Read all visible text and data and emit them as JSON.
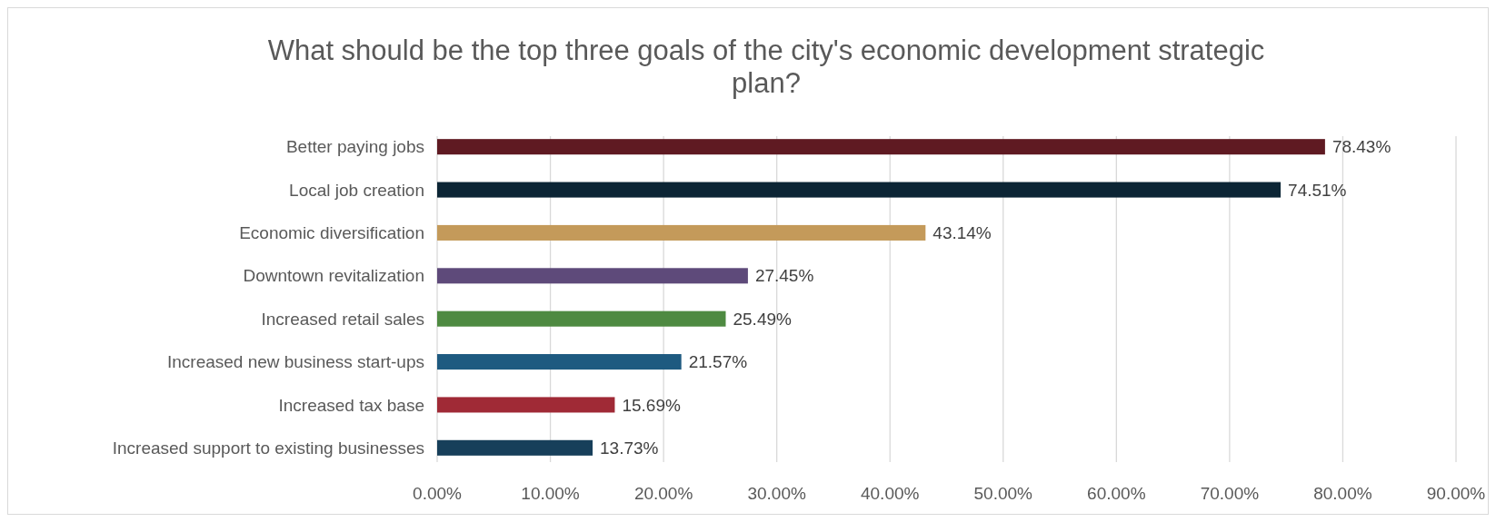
{
  "chart_data": {
    "type": "bar",
    "orientation": "horizontal",
    "title": "What should be the top three goals of the city's economic development strategic plan?",
    "categories": [
      "Better paying jobs",
      "Local job creation",
      "Economic diversification",
      "Downtown revitalization",
      "Increased retail sales",
      "Increased new business start-ups",
      "Increased tax base",
      "Increased support to existing businesses"
    ],
    "values": [
      78.43,
      74.51,
      43.14,
      27.45,
      25.49,
      21.57,
      15.69,
      13.73
    ],
    "colors": [
      "#5f1a22",
      "#0c2535",
      "#c49a5a",
      "#5e4a7a",
      "#4e8a41",
      "#1e5a80",
      "#a02a36",
      "#173f5a"
    ],
    "value_labels": [
      "78.43%",
      "74.51%",
      "43.14%",
      "27.45%",
      "25.49%",
      "21.57%",
      "15.69%",
      "13.73%"
    ],
    "xlim": [
      0,
      90
    ],
    "xticks": [
      {
        "value": 0,
        "label": "0.00%"
      },
      {
        "value": 10,
        "label": "10.00%"
      },
      {
        "value": 20,
        "label": "20.00%"
      },
      {
        "value": 30,
        "label": "30.00%"
      },
      {
        "value": 40,
        "label": "40.00%"
      },
      {
        "value": 50,
        "label": "50.00%"
      },
      {
        "value": 60,
        "label": "60.00%"
      },
      {
        "value": 70,
        "label": "70.00%"
      },
      {
        "value": 80,
        "label": "80.00%"
      },
      {
        "value": 90,
        "label": "90.00%"
      }
    ],
    "grid": "x"
  }
}
